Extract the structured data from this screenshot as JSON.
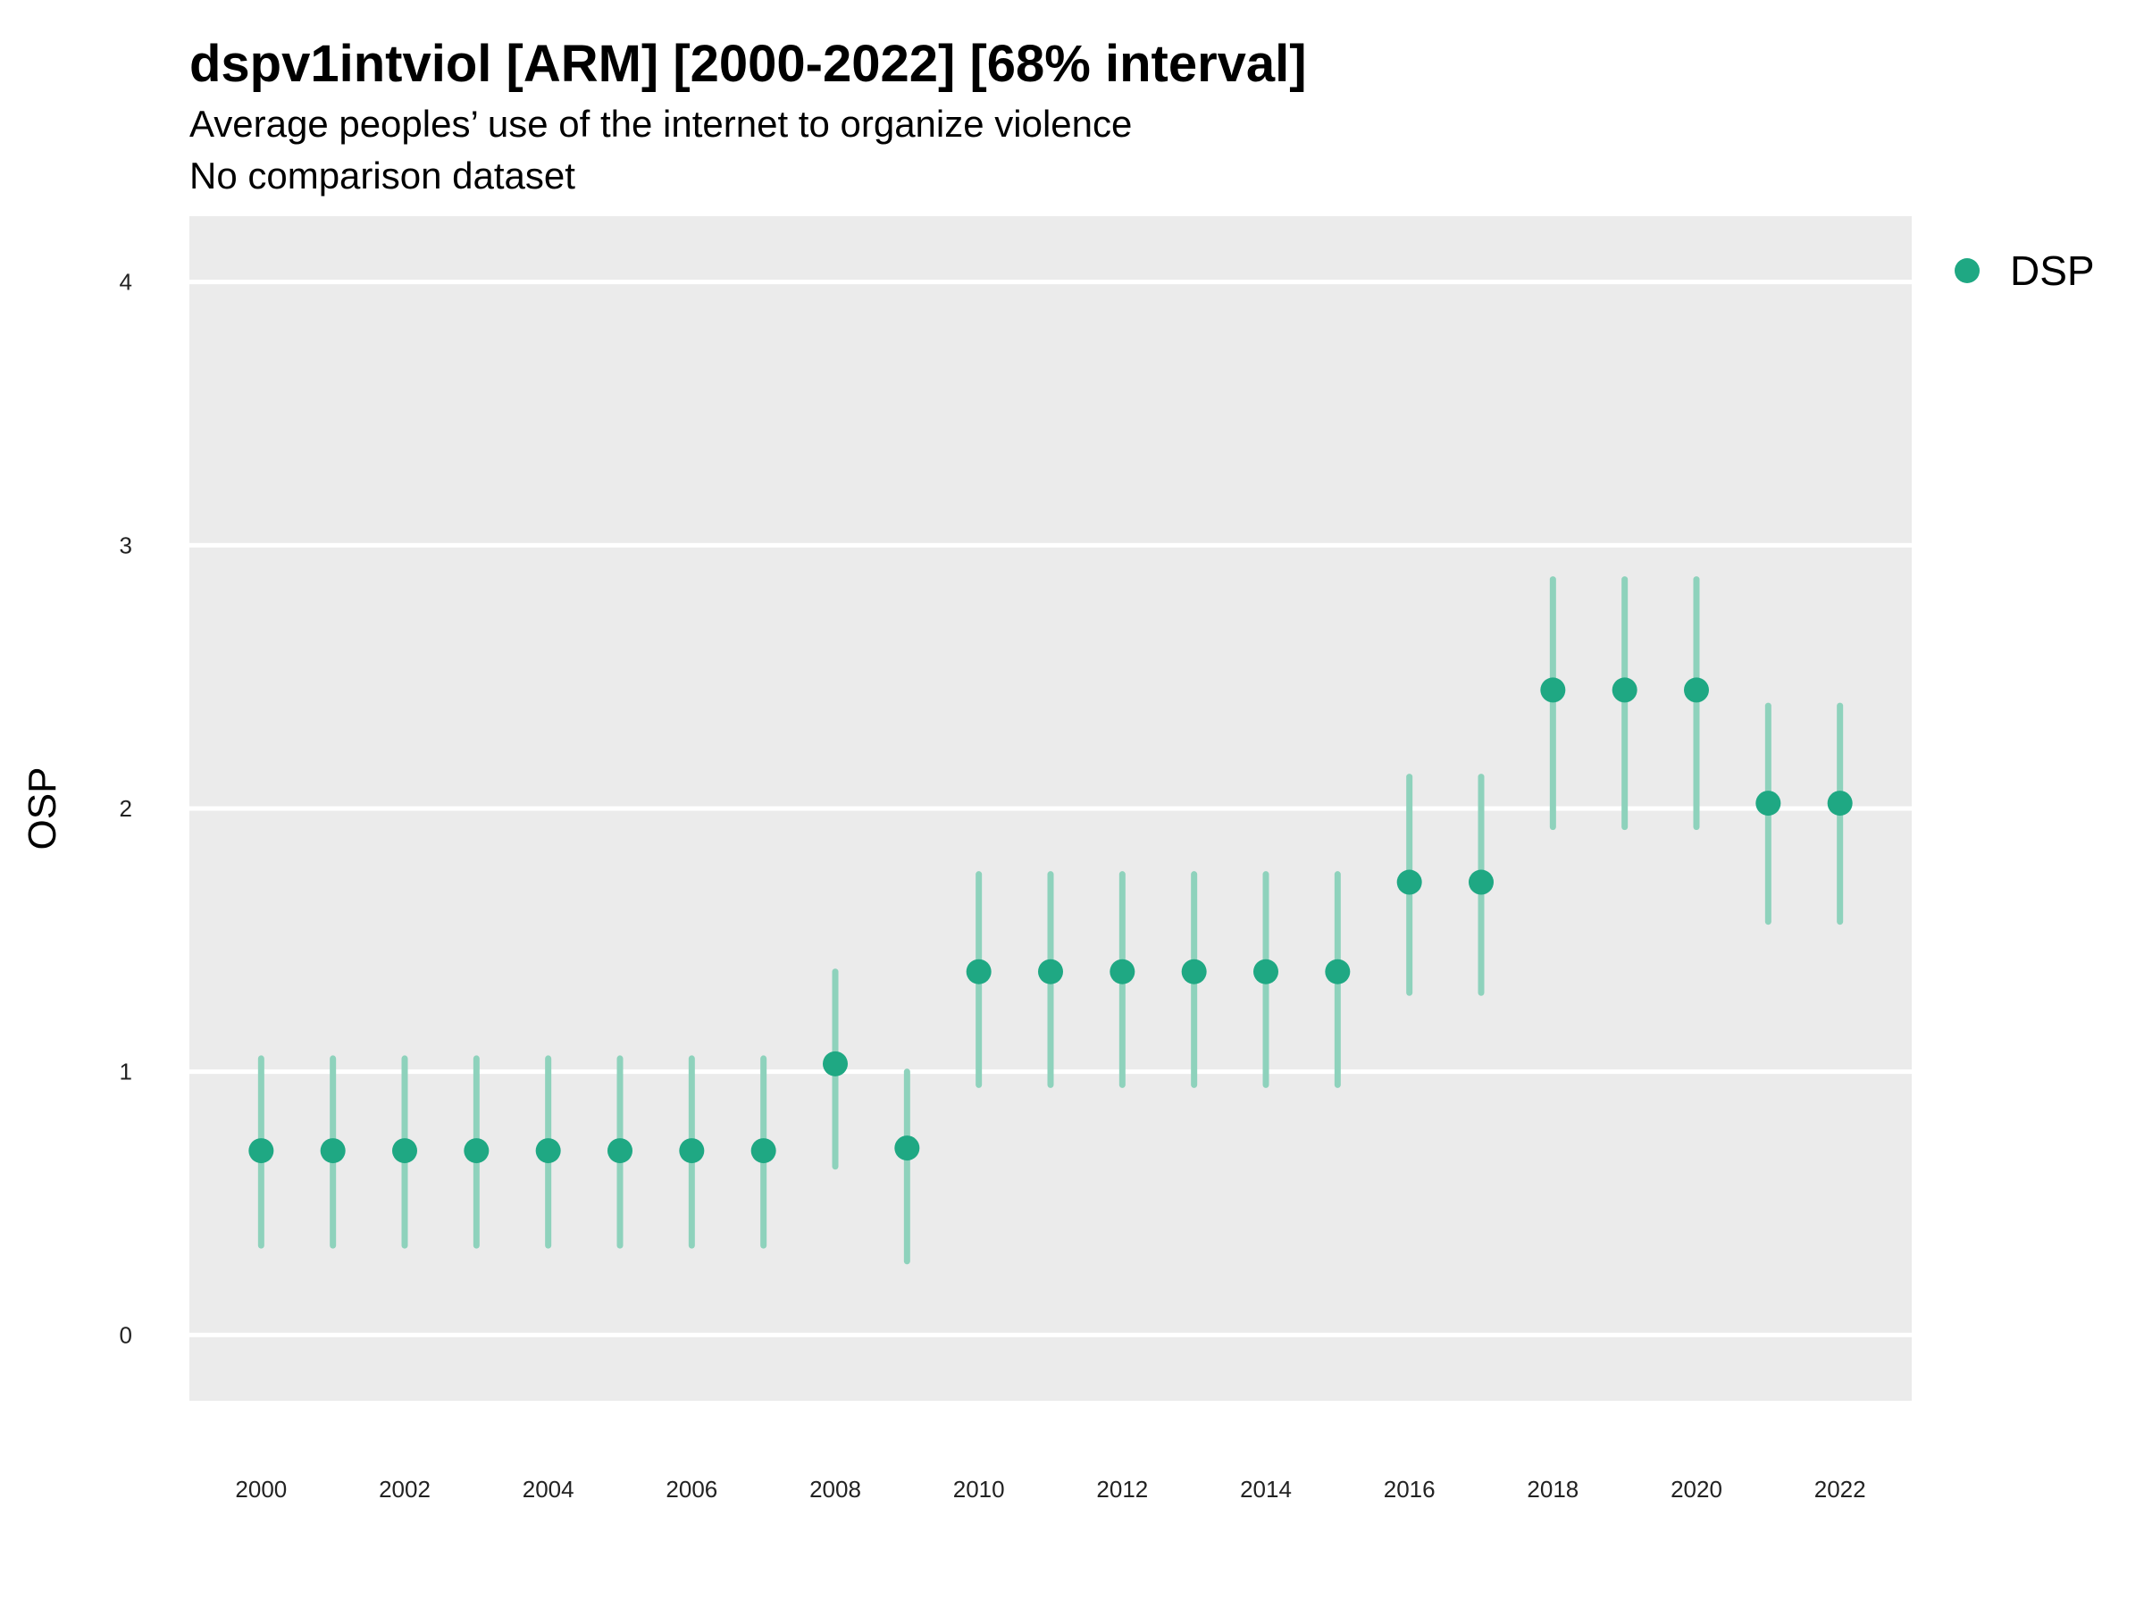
{
  "chart_data": {
    "type": "scatter",
    "title": "dspv1intviol [ARM] [2000-2022] [68% interval]",
    "subtitle": "Average peoples’ use of the internet to organize violence",
    "subtitle2": "No comparison dataset",
    "xlabel": "",
    "ylabel": "OSP",
    "ylim": [
      -0.25,
      4.25
    ],
    "xlim": [
      1999,
      2023
    ],
    "yticks": [
      0,
      1,
      2,
      3,
      4
    ],
    "xticks": [
      2000,
      2002,
      2004,
      2006,
      2008,
      2010,
      2012,
      2014,
      2016,
      2018,
      2020,
      2022
    ],
    "grid": true,
    "legend_position": "top-right",
    "point_color": "#1FA883",
    "interval_color": "#8ED2BC",
    "panel_color": "#EBEBEB",
    "series": [
      {
        "name": "DSP",
        "x": [
          2000,
          2001,
          2002,
          2003,
          2004,
          2005,
          2006,
          2007,
          2008,
          2009,
          2010,
          2011,
          2012,
          2013,
          2014,
          2015,
          2016,
          2017,
          2018,
          2019,
          2020,
          2021,
          2022
        ],
        "y": [
          0.7,
          0.7,
          0.7,
          0.7,
          0.7,
          0.7,
          0.7,
          0.7,
          1.03,
          0.71,
          1.38,
          1.38,
          1.38,
          1.38,
          1.38,
          1.38,
          1.72,
          1.72,
          2.45,
          2.45,
          2.45,
          2.02,
          2.02
        ],
        "lower": [
          0.34,
          0.34,
          0.34,
          0.34,
          0.34,
          0.34,
          0.34,
          0.34,
          0.64,
          0.28,
          0.95,
          0.95,
          0.95,
          0.95,
          0.95,
          0.95,
          1.3,
          1.3,
          1.93,
          1.93,
          1.93,
          1.57,
          1.57
        ],
        "upper": [
          1.05,
          1.05,
          1.05,
          1.05,
          1.05,
          1.05,
          1.05,
          1.05,
          1.38,
          1.0,
          1.75,
          1.75,
          1.75,
          1.75,
          1.75,
          1.75,
          2.12,
          2.12,
          2.87,
          2.87,
          2.87,
          2.39,
          2.39
        ]
      }
    ]
  }
}
